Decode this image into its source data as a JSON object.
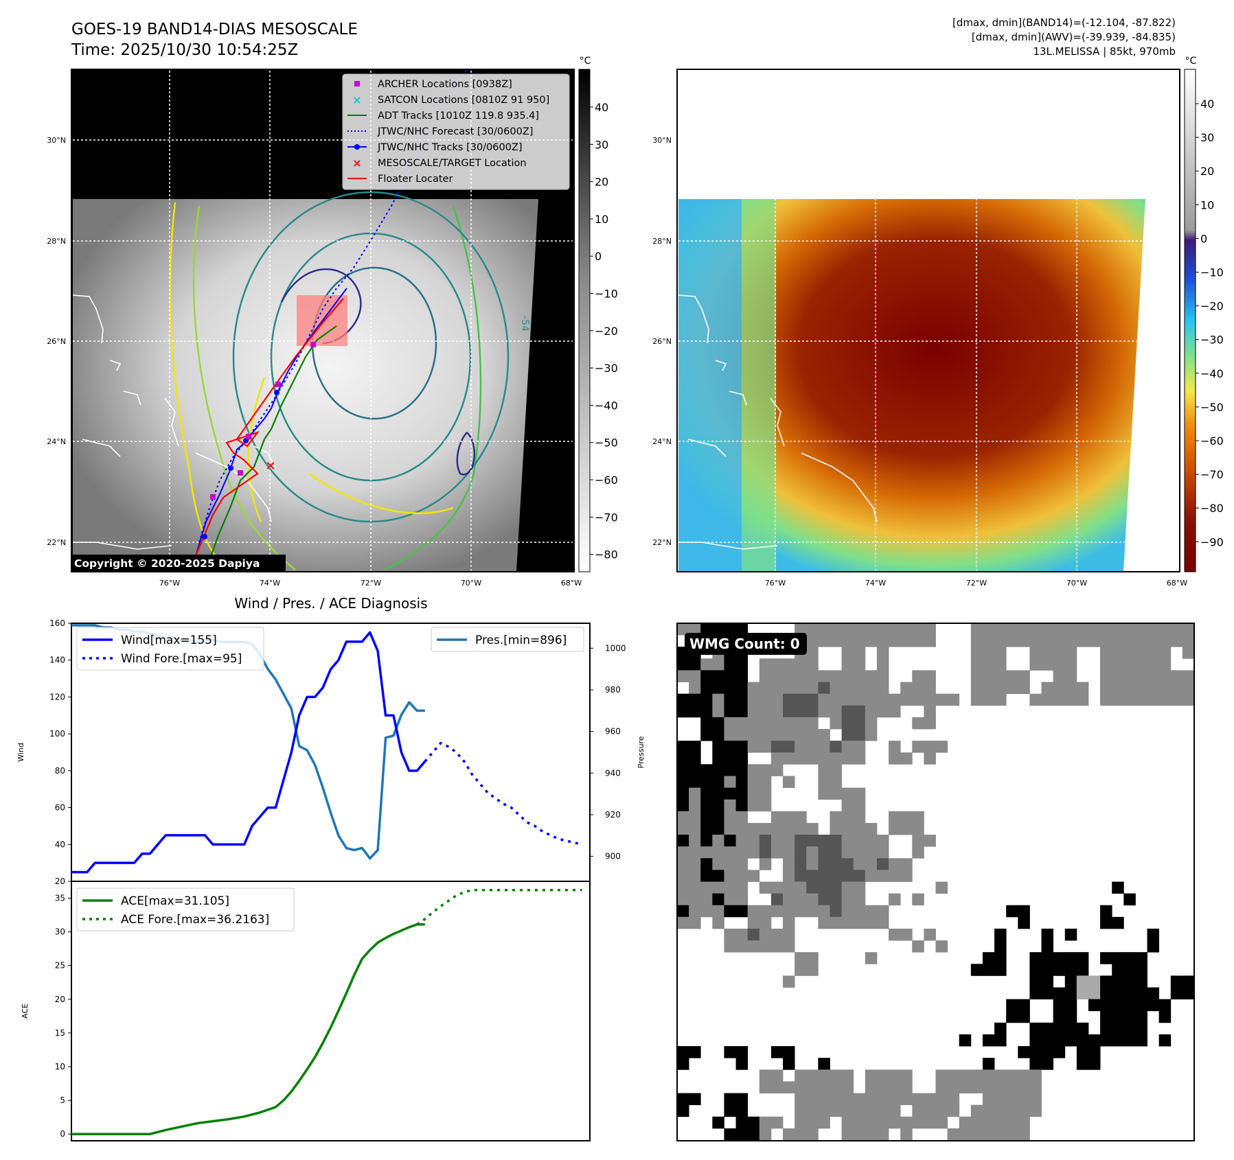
{
  "header": {
    "title_line1": "GOES-19 BAND14-DIAS MESOSCALE",
    "title_line2": "Time: 2025/10/30 10:54:25Z",
    "info_line1": "[dmax, dmin](BAND14)=(-12.104, -87.822)",
    "info_line2": "[dmax, dmin](AWV)=(-39.939, -84.835)",
    "info_line3": "13L.MELISSA | 85kt, 970mb"
  },
  "map_axes": {
    "lat_ticks": [
      "22°N",
      "24°N",
      "26°N",
      "28°N",
      "30°N"
    ],
    "lon_ticks": [
      "76°W",
      "74°W",
      "72°W",
      "70°W",
      "68°W"
    ]
  },
  "legend_map": [
    {
      "label": "ARCHER Locations [0938Z]",
      "symbol": "square",
      "color": "#cc00cc"
    },
    {
      "label": "SATCON Locations [0810Z 91 950]",
      "symbol": "x",
      "color": "#17becf"
    },
    {
      "label": "ADT Tracks [1010Z 119.8 935.4]",
      "symbol": "line",
      "color": "#008000"
    },
    {
      "label": "JTWC/NHC Forecast [30/0600Z]",
      "symbol": "dotted",
      "color": "#0000ff"
    },
    {
      "label": "JTWC/NHC Tracks [30/0600Z]",
      "symbol": "line-dot",
      "color": "#0000ff"
    },
    {
      "label": "MESOSCALE/TARGET Location",
      "symbol": "x",
      "color": "#ff0000"
    },
    {
      "label": "Floater Locater",
      "symbol": "line",
      "color": "#ff0000"
    }
  ],
  "colorbar_gray": {
    "unit": "°C",
    "ticks": [
      "40",
      "30",
      "20",
      "10",
      "0",
      "−10",
      "−20",
      "−30",
      "−40",
      "−50",
      "−60",
      "−70",
      "−80"
    ]
  },
  "colorbar_color": {
    "unit": "°C",
    "ticks": [
      "40",
      "30",
      "20",
      "10",
      "0",
      "−10",
      "−20",
      "−30",
      "−40",
      "−50",
      "−60",
      "−70",
      "−80",
      "−90"
    ]
  },
  "copyright": "Copyright © 2020-2025 Dapiya",
  "contour_label": "-54",
  "wmg_count": "WMG Count: 0",
  "chart_data": [
    {
      "type": "line",
      "title": "Wind / Pres. / ACE Diagnosis",
      "ylabel": "Wind",
      "y2label": "Pressure",
      "ylim": [
        20,
        160
      ],
      "y2lim": [
        888,
        1012
      ],
      "xlim": [
        0,
        66
      ],
      "yticks": [
        "160",
        "140",
        "120",
        "100",
        "80",
        "60",
        "40",
        "20"
      ],
      "y2ticks": [
        "1000",
        "980",
        "960",
        "940",
        "920",
        "900"
      ],
      "series": [
        {
          "name": "Wind[max=155]",
          "color": "#0000ff",
          "style": "solid",
          "x": [
            0,
            1,
            2,
            3,
            4,
            5,
            6,
            7,
            8,
            9,
            10,
            11,
            12,
            13,
            14,
            15,
            16,
            17,
            18,
            19,
            20,
            21,
            22,
            23,
            24,
            25,
            26,
            27,
            28,
            29,
            30,
            31,
            32,
            33,
            34,
            35,
            36,
            37,
            38,
            39,
            40,
            41,
            42,
            43,
            44,
            45
          ],
          "y": [
            25,
            25,
            25,
            30,
            30,
            30,
            30,
            30,
            30,
            35,
            35,
            40,
            45,
            45,
            45,
            45,
            45,
            45,
            40,
            40,
            40,
            40,
            40,
            50,
            55,
            60,
            60,
            75,
            90,
            110,
            120,
            120,
            125,
            135,
            140,
            150,
            150,
            150,
            155,
            145,
            110,
            110,
            90,
            80,
            80,
            85
          ]
        },
        {
          "name": "Wind Fore.[max=95]",
          "color": "#0000ff",
          "style": "dotted",
          "x": [
            45,
            46,
            47,
            48,
            49,
            50,
            51,
            52,
            53,
            54,
            55,
            56,
            57,
            58,
            59,
            60,
            61,
            62,
            63,
            64,
            65
          ],
          "y": [
            85,
            90,
            95,
            93,
            90,
            85,
            78,
            73,
            68,
            65,
            62,
            60,
            56,
            52,
            50,
            47,
            45,
            43,
            42,
            41,
            40
          ]
        }
      ]
    },
    {
      "type": "line",
      "ylabel": "Pressure",
      "ylim": [
        888,
        1012
      ],
      "series": [
        {
          "name": "Pres.[min=896]",
          "color": "#1f77b4",
          "style": "solid",
          "x": [
            0,
            1,
            2,
            3,
            4,
            5,
            6,
            7,
            8,
            9,
            10,
            11,
            12,
            13,
            14,
            15,
            16,
            17,
            18,
            19,
            20,
            21,
            22,
            23,
            24,
            25,
            26,
            27,
            28,
            29,
            30,
            31,
            32,
            33,
            34,
            35,
            36,
            37,
            38,
            39,
            40,
            41,
            42,
            43,
            44,
            45
          ],
          "y": [
            1011,
            1011,
            1011,
            1011,
            1010,
            1010,
            1009,
            1009,
            1008,
            1008,
            1007,
            1006,
            1005,
            1005,
            1004,
            1004,
            1003,
            1004,
            1004,
            1003,
            1003,
            1003,
            1003,
            1002,
            997,
            990,
            985,
            978,
            971,
            953,
            951,
            944,
            933,
            921,
            910,
            904,
            903,
            904,
            899,
            903,
            957,
            958,
            968,
            974,
            970,
            970
          ]
        }
      ]
    },
    {
      "type": "line",
      "ylabel": "ACE",
      "ylim": [
        -1,
        37.5
      ],
      "xlim": [
        0,
        66
      ],
      "yticks": [
        "35",
        "30",
        "25",
        "20",
        "15",
        "10",
        "5",
        "0"
      ],
      "series": [
        {
          "name": "ACE[max=31.105]",
          "color": "#008000",
          "style": "solid",
          "x": [
            0,
            5,
            10,
            12,
            14,
            16,
            18,
            20,
            22,
            24,
            26,
            27,
            28,
            29,
            30,
            31,
            32,
            33,
            34,
            35,
            36,
            37,
            38,
            39,
            40,
            41,
            42,
            43,
            44,
            45
          ],
          "y": [
            0,
            0,
            0,
            0.6,
            1.1,
            1.6,
            1.9,
            2.2,
            2.6,
            3.2,
            4.0,
            5.0,
            6.3,
            7.9,
            9.6,
            11.4,
            13.5,
            15.8,
            18.3,
            20.9,
            23.6,
            26.0,
            27.3,
            28.4,
            29.1,
            29.7,
            30.2,
            30.7,
            31.1,
            31.1
          ]
        },
        {
          "name": "ACE Fore.[max=36.2163]",
          "color": "#008000",
          "style": "dotted",
          "x": [
            44,
            45,
            46,
            47,
            48,
            49,
            50,
            51,
            52,
            53,
            55,
            60,
            65
          ],
          "y": [
            31.1,
            31.9,
            32.9,
            33.8,
            34.6,
            35.4,
            35.9,
            36.2,
            36.2,
            36.2,
            36.2,
            36.2,
            36.2
          ]
        }
      ]
    }
  ]
}
